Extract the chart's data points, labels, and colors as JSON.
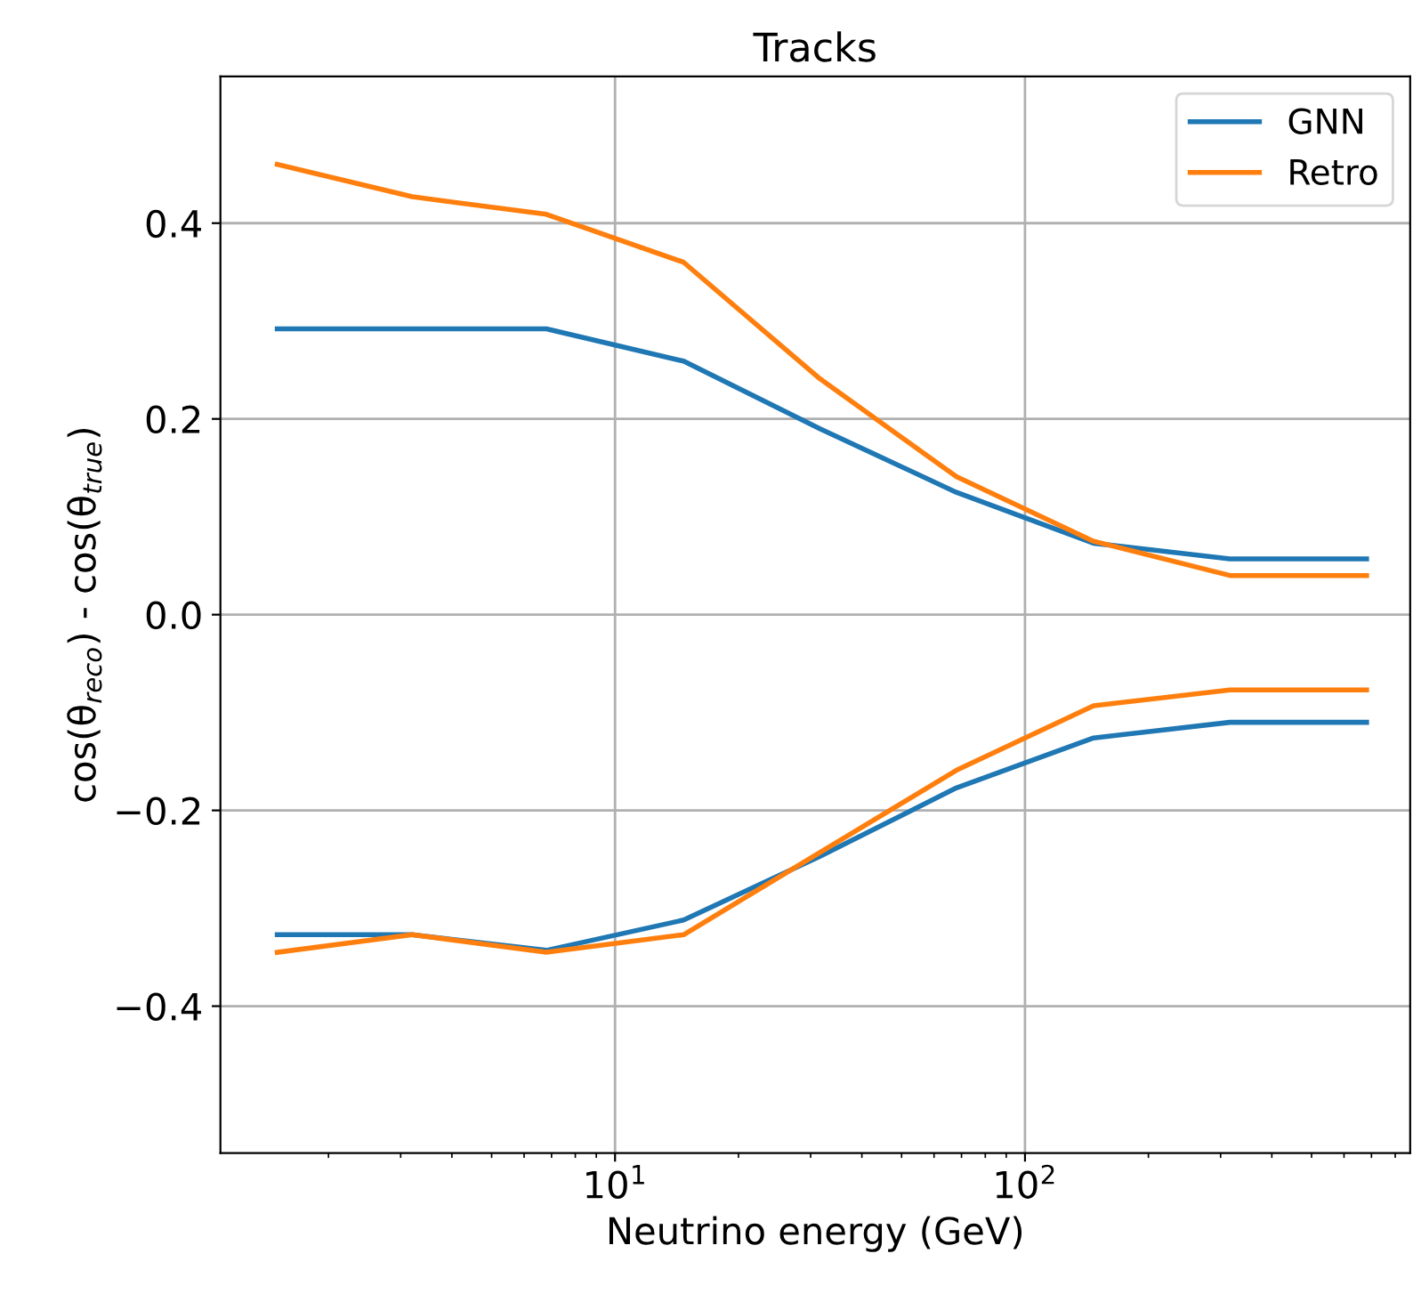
{
  "chart_data": {
    "type": "line",
    "title": "Tracks",
    "xlabel": "Neutrino energy (GeV)",
    "ylabel": "cos(θ$_{reco}$) - cos(θ$_{true}$)",
    "x": [
      1.5,
      3.2,
      6.8,
      14.7,
      31.6,
      68,
      147,
      316,
      681
    ],
    "series": [
      {
        "name": "GNN",
        "color": "#1f77b4",
        "values": [
          0.292,
          0.292,
          0.292,
          0.259,
          0.19,
          0.125,
          0.073,
          0.057,
          0.057
        ]
      },
      {
        "name": "Retro",
        "color": "#ff7f0e",
        "values": [
          0.46,
          0.427,
          0.409,
          0.36,
          0.241,
          0.141,
          0.075,
          0.04,
          0.04
        ]
      },
      {
        "color": "#1f77b4",
        "values": [
          -0.327,
          -0.327,
          -0.343,
          -0.312,
          -0.247,
          -0.177,
          -0.126,
          -0.11,
          -0.11
        ]
      },
      {
        "color": "#ff7f0e",
        "values": [
          -0.345,
          -0.327,
          -0.345,
          -0.327,
          -0.243,
          -0.159,
          -0.093,
          -0.077,
          -0.077
        ]
      }
    ],
    "log": "x",
    "xlim": [
      1.09,
      870
    ],
    "xticks": [
      {
        "value": 10,
        "label": "10$^{1}$"
      },
      {
        "value": 100,
        "label": "10$^{2}$"
      }
    ],
    "ylim": [
      -0.55,
      0.55
    ],
    "yticks": [
      {
        "value": -0.4,
        "label": "−0.4"
      },
      {
        "value": -0.2,
        "label": "−0.2"
      },
      {
        "value": 0.0,
        "label": "0.0"
      },
      {
        "value": 0.2,
        "label": "0.2"
      },
      {
        "value": 0.4,
        "label": "0.4"
      }
    ],
    "grid": true,
    "legend": "top right",
    "marker": "none",
    "line_style": "solid"
  }
}
